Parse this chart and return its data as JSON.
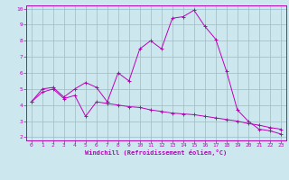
{
  "xlabel": "Windchill (Refroidissement éolien,°C)",
  "xlim": [
    -0.5,
    23.5
  ],
  "ylim": [
    1.8,
    10.2
  ],
  "xticks": [
    0,
    1,
    2,
    3,
    4,
    5,
    6,
    7,
    8,
    9,
    10,
    11,
    12,
    13,
    14,
    15,
    16,
    17,
    18,
    19,
    20,
    21,
    22,
    23
  ],
  "yticks": [
    2,
    3,
    4,
    5,
    6,
    7,
    8,
    9,
    10
  ],
  "bg_color": "#cce8ee",
  "line_color": "#bb00bb",
  "grid_color": "#99bbcc",
  "series1": [
    [
      0,
      4.2
    ],
    [
      1,
      5.0
    ],
    [
      2,
      5.1
    ],
    [
      3,
      4.5
    ],
    [
      4,
      5.0
    ],
    [
      5,
      5.4
    ],
    [
      6,
      5.1
    ],
    [
      7,
      4.2
    ],
    [
      8,
      6.0
    ],
    [
      9,
      5.5
    ],
    [
      10,
      7.5
    ],
    [
      11,
      8.0
    ],
    [
      12,
      7.5
    ],
    [
      13,
      9.4
    ],
    [
      14,
      9.5
    ],
    [
      15,
      9.9
    ],
    [
      16,
      8.9
    ],
    [
      17,
      8.1
    ],
    [
      18,
      6.1
    ],
    [
      19,
      3.7
    ],
    [
      20,
      3.0
    ],
    [
      21,
      2.5
    ],
    [
      22,
      2.4
    ],
    [
      23,
      2.2
    ]
  ],
  "series2": [
    [
      0,
      4.2
    ],
    [
      1,
      4.8
    ],
    [
      2,
      5.0
    ],
    [
      3,
      4.4
    ],
    [
      4,
      4.6
    ],
    [
      5,
      3.3
    ],
    [
      6,
      4.2
    ],
    [
      7,
      4.1
    ],
    [
      8,
      4.0
    ],
    [
      9,
      3.9
    ],
    [
      10,
      3.85
    ],
    [
      11,
      3.7
    ],
    [
      12,
      3.6
    ],
    [
      13,
      3.5
    ],
    [
      14,
      3.45
    ],
    [
      15,
      3.4
    ],
    [
      16,
      3.3
    ],
    [
      17,
      3.2
    ],
    [
      18,
      3.1
    ],
    [
      19,
      3.0
    ],
    [
      20,
      2.85
    ],
    [
      21,
      2.75
    ],
    [
      22,
      2.6
    ],
    [
      23,
      2.5
    ]
  ]
}
